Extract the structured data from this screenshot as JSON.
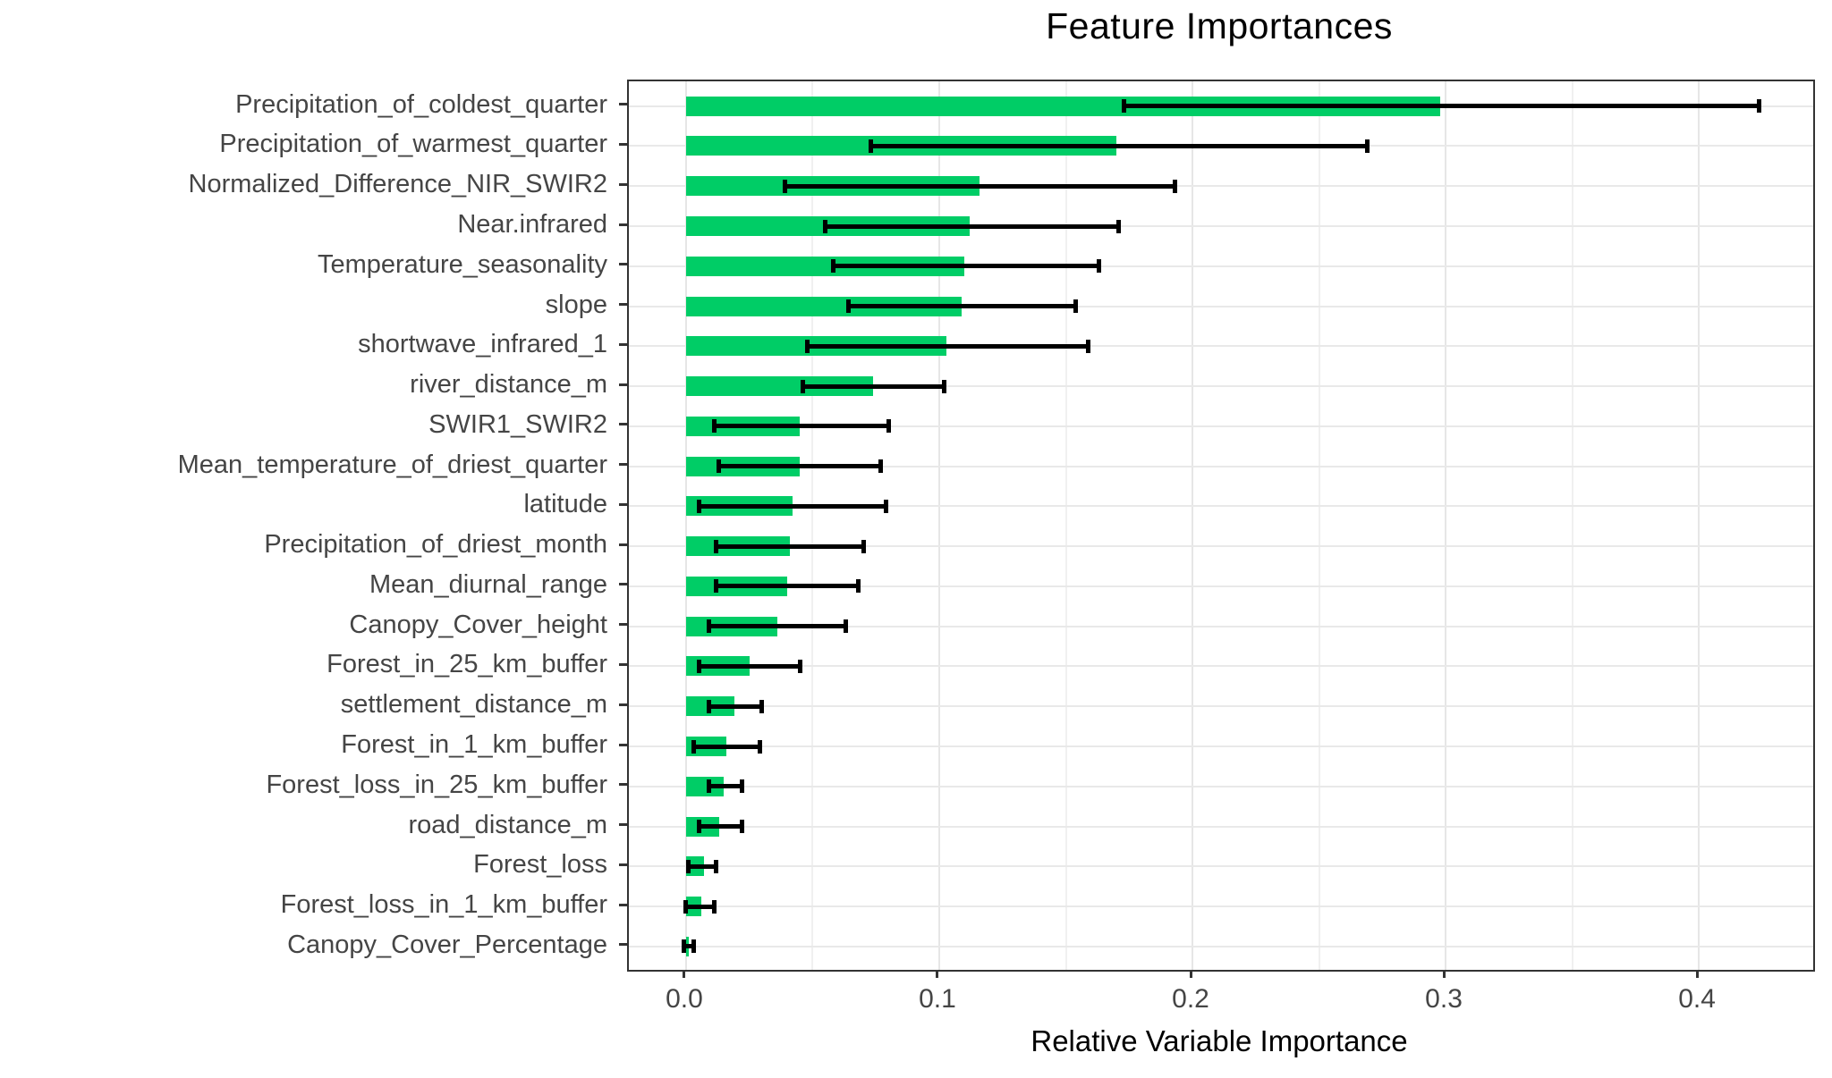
{
  "title": "Feature Importances",
  "chart_data": {
    "type": "bar",
    "orientation": "horizontal",
    "title": "Feature Importances",
    "xlabel": "Relative Variable Importance",
    "ylabel": "",
    "grid": true,
    "legend": false,
    "xlim": [
      -0.0226,
      0.4452
    ],
    "x_major_ticks": [
      0.0,
      0.1,
      0.2,
      0.3,
      0.4
    ],
    "x_tick_labels": [
      "0.0",
      "0.1",
      "0.2",
      "0.3",
      "0.4"
    ],
    "x_minor_ticks": [
      0.05,
      0.15,
      0.25,
      0.35
    ],
    "categories": [
      "Precipitation_of_coldest_quarter",
      "Precipitation_of_warmest_quarter",
      "Normalized_Difference_NIR_SWIR2",
      "Near.infrared",
      "Temperature_seasonality",
      "slope",
      "shortwave_infrared_1",
      "river_distance_m",
      "SWIR1_SWIR2",
      "Mean_temperature_of_driest_quarter",
      "latitude",
      "Precipitation_of_driest_month",
      "Mean_diurnal_range",
      "Canopy_Cover_height",
      "Forest_in_25_km_buffer",
      "settlement_distance_m",
      "Forest_in_1_km_buffer",
      "Forest_loss_in_25_km_buffer",
      "road_distance_m",
      "Forest_loss",
      "Forest_loss_in_1_km_buffer",
      "Canopy_Cover_Percentage"
    ],
    "values": [
      0.298,
      0.17,
      0.116,
      0.112,
      0.11,
      0.109,
      0.103,
      0.074,
      0.045,
      0.045,
      0.042,
      0.041,
      0.04,
      0.036,
      0.025,
      0.019,
      0.016,
      0.015,
      0.013,
      0.007,
      0.006,
      0.001
    ],
    "error_low": [
      0.173,
      0.073,
      0.039,
      0.055,
      0.058,
      0.064,
      0.048,
      0.046,
      0.011,
      0.013,
      0.005,
      0.012,
      0.012,
      0.009,
      0.005,
      0.009,
      0.003,
      0.009,
      0.005,
      0.001,
      0.0,
      -0.001
    ],
    "error_high": [
      0.424,
      0.269,
      0.193,
      0.171,
      0.163,
      0.154,
      0.159,
      0.102,
      0.08,
      0.077,
      0.079,
      0.07,
      0.068,
      0.063,
      0.045,
      0.03,
      0.029,
      0.022,
      0.022,
      0.012,
      0.011,
      0.003
    ],
    "colors": {
      "bar_fill": "#00CD66",
      "error_bar": "#000000",
      "panel_border": "#333333",
      "grid_major": "#e6e6e6",
      "grid_minor": "#f0f0f0",
      "axis_text": "#454545",
      "title_text": "#000000"
    }
  }
}
